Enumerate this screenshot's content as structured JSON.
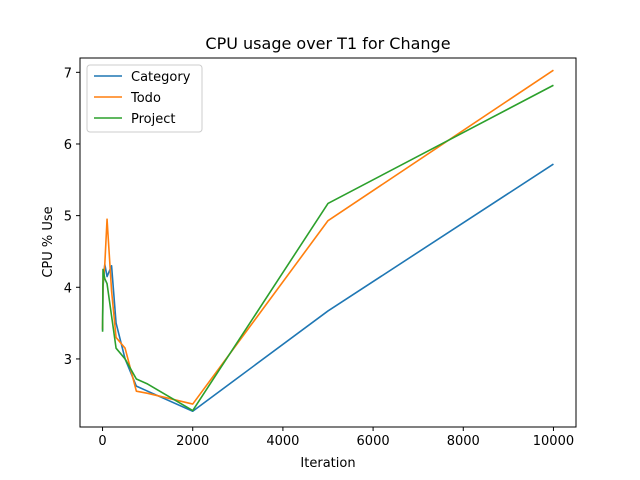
{
  "chart_data": {
    "type": "line",
    "title": "CPU usage over T1 for Change",
    "xlabel": "Iteration",
    "ylabel": "CPU % Use",
    "xlim": [
      -500,
      10500
    ],
    "ylim": [
      2.05,
      7.2
    ],
    "xticks": [
      0,
      2000,
      4000,
      6000,
      8000,
      10000
    ],
    "yticks": [
      3,
      4,
      5,
      6,
      7
    ],
    "grid": false,
    "legend_position": "top-left",
    "x": [
      1,
      10,
      50,
      100,
      200,
      300,
      500,
      750,
      1000,
      2000,
      5000,
      10000
    ],
    "series": [
      {
        "name": "Category",
        "color": "#1f77b4",
        "values": [
          3.4,
          4.0,
          4.32,
          4.15,
          4.3,
          3.5,
          3.0,
          2.62,
          2.55,
          2.27,
          3.67,
          5.72
        ]
      },
      {
        "name": "Todo",
        "color": "#ff7f0e",
        "values": [
          3.42,
          4.05,
          4.32,
          4.95,
          3.95,
          3.3,
          3.15,
          2.55,
          2.52,
          2.37,
          4.93,
          7.03
        ]
      },
      {
        "name": "Project",
        "color": "#2ca02c",
        "values": [
          3.38,
          4.25,
          4.12,
          4.05,
          3.6,
          3.15,
          3.0,
          2.72,
          2.65,
          2.28,
          5.17,
          6.82
        ]
      }
    ]
  }
}
